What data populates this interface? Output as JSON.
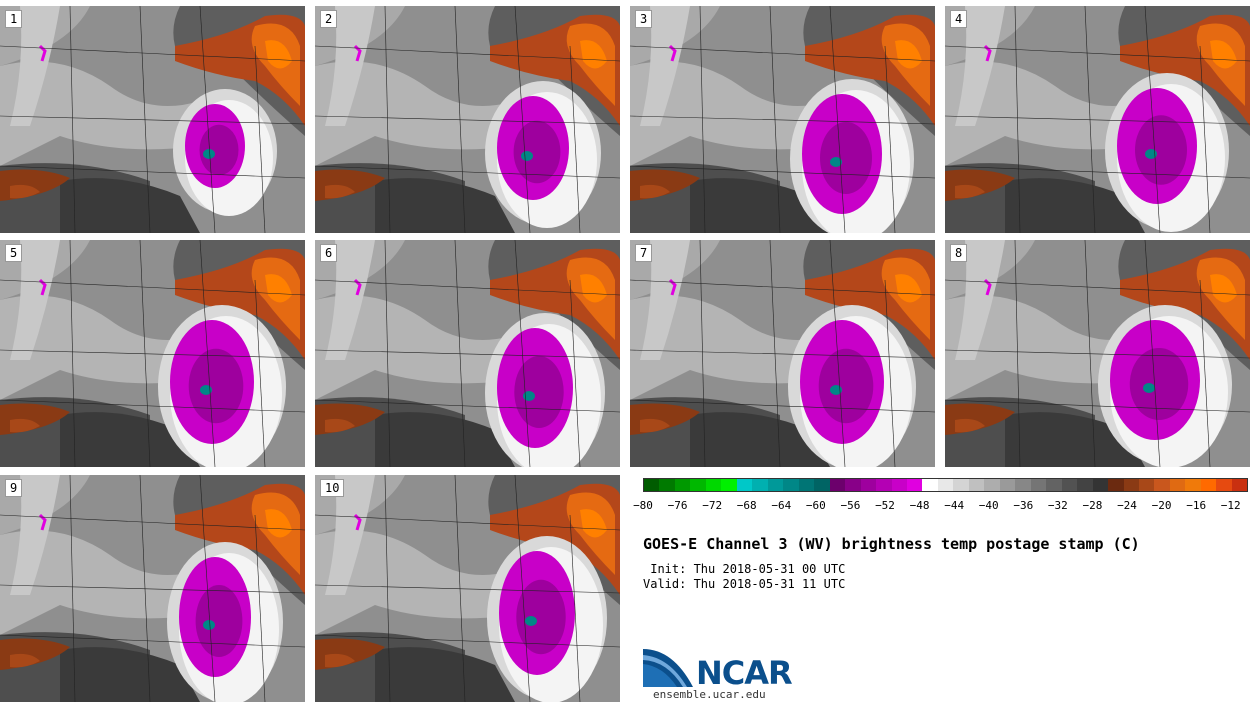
{
  "panels": [
    {
      "label": "1",
      "storm": [
        215,
        140,
        30,
        42
      ]
    },
    {
      "label": "2",
      "storm": [
        218,
        142,
        36,
        52
      ]
    },
    {
      "label": "3",
      "storm": [
        212,
        148,
        40,
        60
      ]
    },
    {
      "label": "4",
      "storm": [
        212,
        140,
        40,
        58
      ]
    },
    {
      "label": "5",
      "storm": [
        212,
        142,
        42,
        62
      ]
    },
    {
      "label": "6",
      "storm": [
        220,
        148,
        38,
        60
      ]
    },
    {
      "label": "7",
      "storm": [
        212,
        142,
        42,
        62
      ]
    },
    {
      "label": "8",
      "storm": [
        210,
        140,
        45,
        60
      ]
    },
    {
      "label": "9",
      "storm": [
        215,
        142,
        36,
        60
      ]
    },
    {
      "label": "10",
      "storm": [
        222,
        138,
        38,
        62
      ]
    }
  ],
  "colorbar": {
    "colors": [
      "#005c00",
      "#007a00",
      "#009900",
      "#00b800",
      "#00d800",
      "#00f000",
      "#00c8c8",
      "#00b0b0",
      "#009999",
      "#008787",
      "#007575",
      "#006464",
      "#6c006c",
      "#880088",
      "#9e009e",
      "#b400b4",
      "#c800c8",
      "#e000e0",
      "#ffffff",
      "#e8e8e8",
      "#d4d4d4",
      "#c0c0c0",
      "#adadad",
      "#9a9a9a",
      "#878787",
      "#757575",
      "#636363",
      "#525252",
      "#434343",
      "#343434",
      "#6b2a10",
      "#8a3a14",
      "#a84818",
      "#c9571d",
      "#e06a12",
      "#f07a0a",
      "#ff6a00",
      "#e64a10",
      "#c93010"
    ],
    "ticks": [
      "-80",
      "-76",
      "-72",
      "-68",
      "-64",
      "-60",
      "-56",
      "-52",
      "-48",
      "-44",
      "-40",
      "-36",
      "-32",
      "-28",
      "-24",
      "-20",
      "-16",
      "-12"
    ]
  },
  "title": "GOES-E Channel 3 (WV) brightness temp postage stamp (C)",
  "init": " Init: Thu 2018-05-31 00 UTC",
  "valid": "Valid: Thu 2018-05-31 11 UTC",
  "logo_text": "NCAR",
  "site": "ensemble.ucar.edu"
}
